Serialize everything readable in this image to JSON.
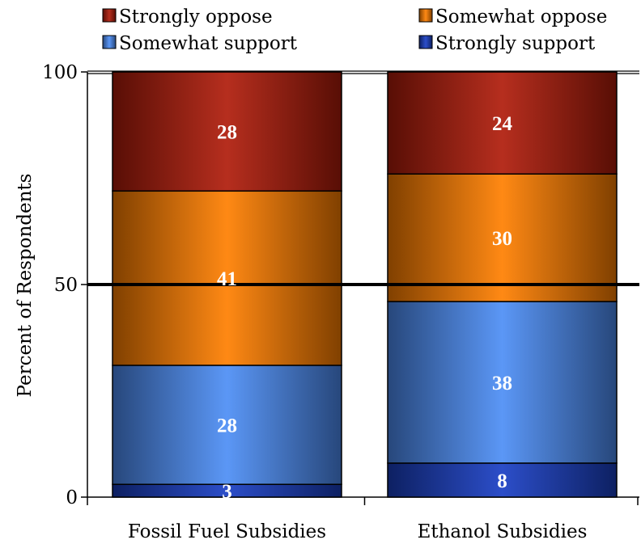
{
  "chart_data": {
    "type": "bar",
    "stacked": true,
    "categories": [
      "Fossil Fuel Subsidies",
      "Ethanol Subsidies"
    ],
    "series": [
      {
        "name": "Strongly support",
        "values": [
          3,
          8
        ],
        "color": "#1a3fc4"
      },
      {
        "name": "Somewhat support",
        "values": [
          28,
          38
        ],
        "color": "#4d8ef5"
      },
      {
        "name": "Somewhat oppose",
        "values": [
          41,
          30
        ],
        "color": "#ff7f00"
      },
      {
        "name": "Strongly oppose",
        "values": [
          28,
          24
        ],
        "color": "#b01c0a"
      }
    ],
    "legend_order": [
      "Strongly oppose",
      "Somewhat oppose",
      "Somewhat support",
      "Strongly support"
    ],
    "legend_position": "top",
    "ylabel": "Percent of  Respondents",
    "xlabel": "",
    "ylim": [
      0,
      100
    ],
    "yticks": [
      "0",
      "50",
      "100"
    ],
    "reference_line": 50,
    "grid": false
  }
}
